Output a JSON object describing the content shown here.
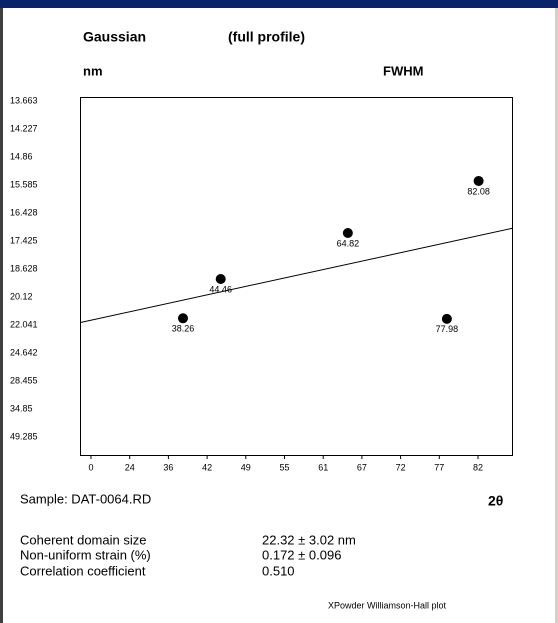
{
  "chart_data": {
    "type": "scatter",
    "title": "Gaussian",
    "subtitle": "(full profile)",
    "y_label": "nm",
    "y2_label": "FWHM",
    "x_label": "2θ",
    "sample": "Sample: DAT-0064.RD",
    "stats": [
      [
        "Coherent domain size",
        "22.32 ± 3.02 nm"
      ],
      [
        "Non-uniform strain (%)",
        "0.172 ± 0.096"
      ],
      [
        "Correlation coefficient",
        "0.510"
      ]
    ],
    "footer": "XPowder Williamson-Hall plot",
    "xticks": [
      0,
      24,
      36,
      42,
      49,
      55,
      61,
      67,
      72,
      77,
      82
    ],
    "yticks": [
      13.663,
      14.227,
      14.86,
      15.585,
      16.428,
      17.425,
      18.628,
      20.12,
      22.041,
      24.642,
      28.455,
      34.85,
      49.285
    ],
    "series": [
      {
        "color": "#000000",
        "x": [
          38.26,
          44.46,
          64.82,
          77.98,
          82.08
        ],
        "values": [
          21.58,
          19.16,
          17.14,
          21.62,
          15.48
        ]
      }
    ],
    "fit": {
      "x": [
        0,
        82
      ],
      "y": [
        21.71,
        17.24
      ]
    }
  }
}
